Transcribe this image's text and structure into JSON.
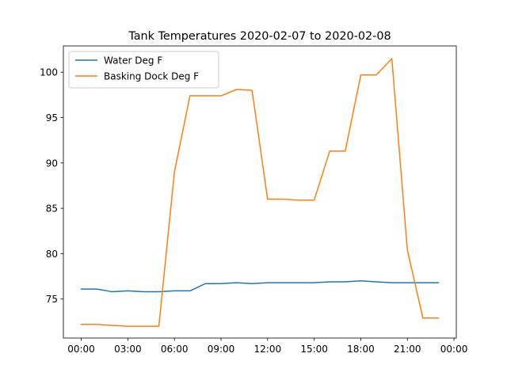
{
  "chart_data": {
    "type": "line",
    "title": "Tank Temperatures 2020-02-07 to 2020-02-08",
    "xlabel": "",
    "ylabel": "",
    "x": [
      "00:00",
      "01:00",
      "02:00",
      "03:00",
      "04:00",
      "05:00",
      "06:00",
      "07:00",
      "08:00",
      "09:00",
      "10:00",
      "11:00",
      "12:00",
      "13:00",
      "14:00",
      "15:00",
      "16:00",
      "17:00",
      "18:00",
      "19:00",
      "20:00",
      "21:00",
      "22:00",
      "23:00"
    ],
    "xticks": [
      "00:00",
      "03:00",
      "06:00",
      "09:00",
      "12:00",
      "15:00",
      "18:00",
      "21:00",
      "00:00"
    ],
    "yticks": [
      75,
      80,
      85,
      90,
      95,
      100
    ],
    "ylim": [
      70.7,
      102.9
    ],
    "xlim_hours": [
      -1.15,
      24.15
    ],
    "grid": false,
    "legend_position": "top-left",
    "series": [
      {
        "name": "Water Deg F",
        "color": "#1f77b4",
        "values": [
          76.1,
          76.1,
          75.8,
          75.9,
          75.8,
          75.8,
          75.9,
          75.9,
          76.7,
          76.7,
          76.8,
          76.7,
          76.8,
          76.8,
          76.8,
          76.8,
          76.9,
          76.9,
          77.0,
          76.9,
          76.8,
          76.8,
          76.8,
          76.8
        ]
      },
      {
        "name": "Basking Dock Deg F",
        "color": "#ff7f0e",
        "values": [
          72.2,
          72.2,
          72.1,
          72.0,
          72.0,
          72.0,
          89.0,
          97.4,
          97.4,
          97.4,
          98.1,
          98.0,
          86.0,
          86.0,
          85.9,
          85.9,
          91.3,
          91.3,
          99.7,
          99.7,
          101.5,
          80.4,
          72.9,
          72.9
        ]
      }
    ]
  }
}
